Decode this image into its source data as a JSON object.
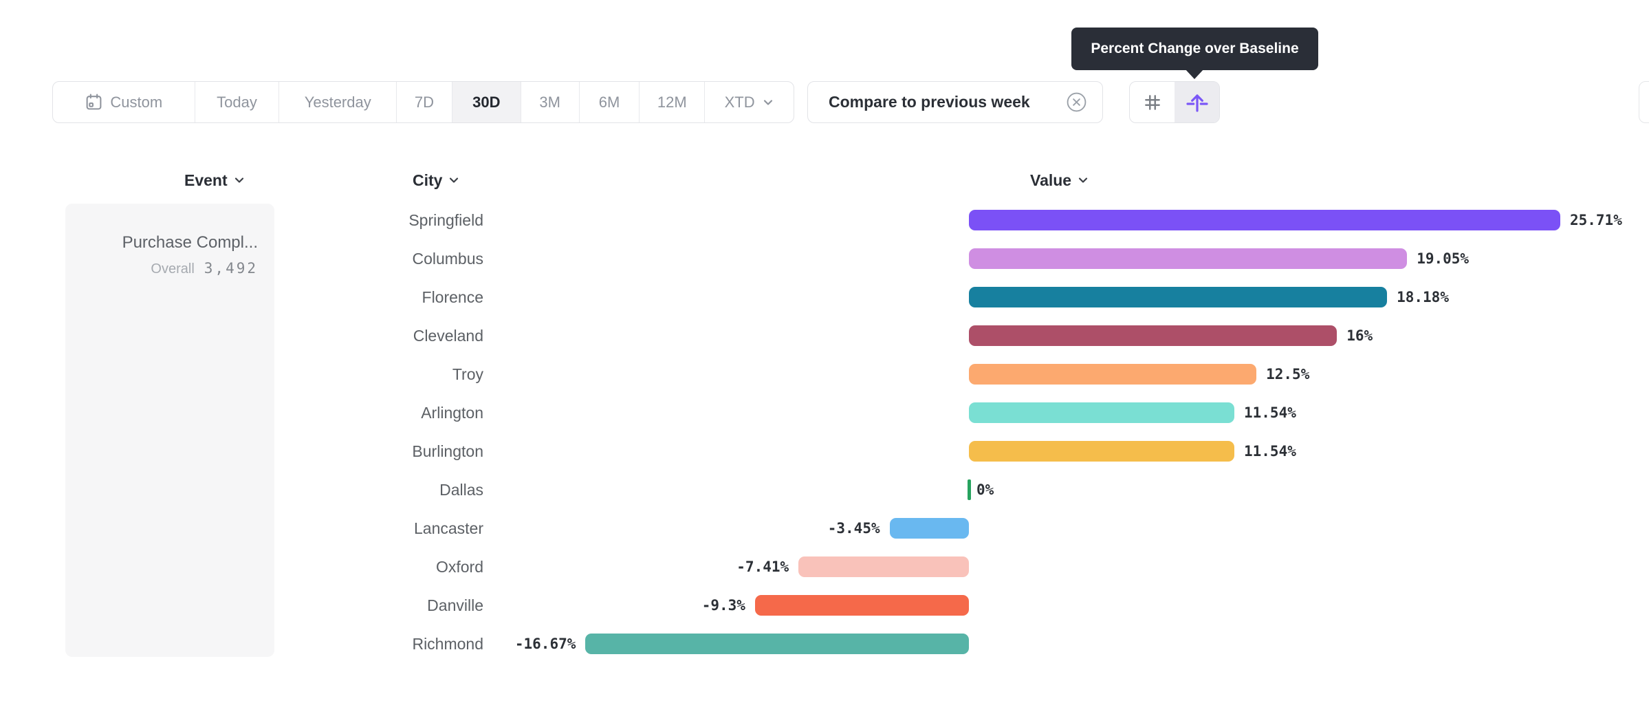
{
  "tooltip": {
    "text": "Percent Change over Baseline"
  },
  "toolbar": {
    "ranges": [
      {
        "label": "Custom",
        "icon": "calendar-icon"
      },
      {
        "label": "Today"
      },
      {
        "label": "Yesterday"
      },
      {
        "label": "7D"
      },
      {
        "label": "30D",
        "selected": true
      },
      {
        "label": "3M"
      },
      {
        "label": "6M"
      },
      {
        "label": "12M"
      },
      {
        "label": "XTD",
        "has_dropdown": true
      }
    ],
    "compare_label": "Compare to previous week",
    "view_toggle": {
      "left_icon": "hash-grid-icon",
      "right_icon": "percent-baseline-icon",
      "selected": "right",
      "accent_color": "#7b57f7"
    }
  },
  "columns": {
    "event": "Event",
    "city": "City",
    "value": "Value"
  },
  "event_card": {
    "title": "Purchase Compl...",
    "overall_label": "Overall",
    "overall_value": "3,492"
  },
  "chart_data": {
    "type": "bar",
    "orientation": "horizontal",
    "title": "Percent Change over Baseline",
    "value_unit": "percent",
    "categories": [
      "Springfield",
      "Columbus",
      "Florence",
      "Cleveland",
      "Troy",
      "Arlington",
      "Burlington",
      "Dallas",
      "Lancaster",
      "Oxford",
      "Danville",
      "Richmond"
    ],
    "values": [
      25.71,
      19.05,
      18.18,
      16,
      12.5,
      11.54,
      11.54,
      0,
      -3.45,
      -7.41,
      -9.3,
      -16.67
    ],
    "labels": [
      "25.71%",
      "19.05%",
      "18.18%",
      "16%",
      "12.5%",
      "11.54%",
      "11.54%",
      "0%",
      "-3.45%",
      "-7.41%",
      "-9.3%",
      "-16.67%"
    ],
    "colors": [
      "#7b51f6",
      "#cf8ee2",
      "#17809f",
      "#ad4f68",
      "#fca96f",
      "#7adfd3",
      "#f5bd4b",
      "#27a35f",
      "#69b8f0",
      "#f9c2ba",
      "#f5694a",
      "#57b4a7"
    ],
    "xlim": [
      -16.67,
      25.71
    ],
    "grid": false,
    "legend": false
  }
}
